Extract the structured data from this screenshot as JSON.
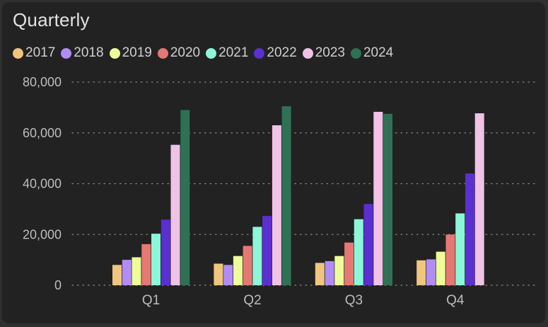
{
  "chart_data": {
    "type": "bar",
    "title": "Quarterly",
    "xlabel": "",
    "ylabel": "",
    "categories": [
      "Q1",
      "Q2",
      "Q3",
      "Q4"
    ],
    "ylim": [
      0,
      80000
    ],
    "yticks": [
      0,
      20000,
      40000,
      60000,
      80000
    ],
    "ytick_labels": [
      "0",
      "20,000",
      "40,000",
      "60,000",
      "80,000"
    ],
    "grid": true,
    "legend_position": "top-left",
    "series": [
      {
        "name": "2017",
        "color": "#f0c57e",
        "values": [
          8000,
          8500,
          8800,
          9800
        ]
      },
      {
        "name": "2018",
        "color": "#b18cf5",
        "values": [
          10000,
          8000,
          9500,
          10200
        ]
      },
      {
        "name": "2019",
        "color": "#eefd9a",
        "values": [
          11000,
          11500,
          11500,
          13200
        ]
      },
      {
        "name": "2020",
        "color": "#e57873",
        "values": [
          16200,
          15500,
          16800,
          20000
        ]
      },
      {
        "name": "2021",
        "color": "#8cf6d9",
        "values": [
          20300,
          23000,
          26000,
          28300
        ]
      },
      {
        "name": "2022",
        "color": "#5b2fd0",
        "values": [
          25800,
          27300,
          32000,
          44000
        ]
      },
      {
        "name": "2023",
        "color": "#f0c2e6",
        "values": [
          55300,
          63000,
          68300,
          67700
        ]
      },
      {
        "name": "2024",
        "color": "#2f7155",
        "values": [
          69000,
          70500,
          67500,
          null
        ]
      }
    ]
  }
}
